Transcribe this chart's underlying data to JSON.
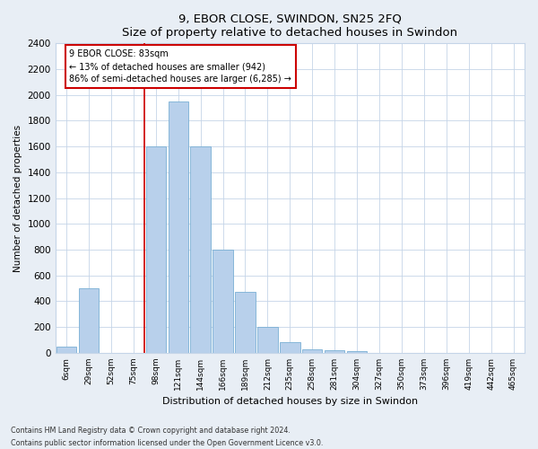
{
  "title": "9, EBOR CLOSE, SWINDON, SN25 2FQ",
  "subtitle": "Size of property relative to detached houses in Swindon",
  "xlabel": "Distribution of detached houses by size in Swindon",
  "ylabel": "Number of detached properties",
  "categories": [
    "6sqm",
    "29sqm",
    "52sqm",
    "75sqm",
    "98sqm",
    "121sqm",
    "144sqm",
    "166sqm",
    "189sqm",
    "212sqm",
    "235sqm",
    "258sqm",
    "281sqm",
    "304sqm",
    "327sqm",
    "350sqm",
    "373sqm",
    "396sqm",
    "419sqm",
    "442sqm",
    "465sqm"
  ],
  "values": [
    50,
    500,
    0,
    0,
    1600,
    1950,
    1600,
    800,
    475,
    200,
    85,
    30,
    20,
    10,
    0,
    0,
    0,
    0,
    0,
    0,
    0
  ],
  "bar_color": "#b8d0eb",
  "bar_edge_color": "#7aafd4",
  "annotation_line1": "9 EBOR CLOSE: 83sqm",
  "annotation_line2": "← 13% of detached houses are smaller (942)",
  "annotation_line3": "86% of semi-detached houses are larger (6,285) →",
  "annotation_box_color": "#ffffff",
  "annotation_box_edge": "#cc0000",
  "vline_color": "#cc0000",
  "ylim": [
    0,
    2400
  ],
  "yticks": [
    0,
    200,
    400,
    600,
    800,
    1000,
    1200,
    1400,
    1600,
    1800,
    2000,
    2200,
    2400
  ],
  "footer1": "Contains HM Land Registry data © Crown copyright and database right 2024.",
  "footer2": "Contains public sector information licensed under the Open Government Licence v3.0.",
  "background_color": "#e8eef5",
  "plot_bg_color": "#ffffff",
  "grid_color": "#c5d5e8"
}
